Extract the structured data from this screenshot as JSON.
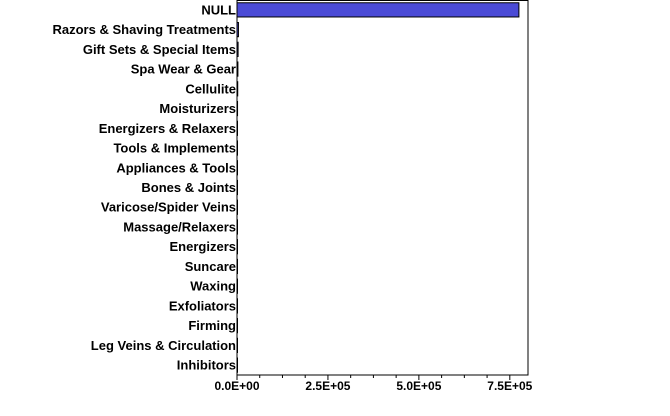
{
  "chart_data": {
    "type": "bar",
    "orientation": "horizontal",
    "title": "",
    "xlabel": "",
    "ylabel": "",
    "categories": [
      "NULL",
      "Razors & Shaving Treatments",
      "Gift Sets & Special Items",
      "Spa Wear & Gear",
      "Cellulite",
      "Moisturizers",
      "Energizers & Relaxers",
      "Tools & Implements",
      "Appliances & Tools",
      "Bones & Joints",
      "Varicose/Spider Veins",
      "Massage/Relaxers",
      "Energizers",
      "Suncare",
      "Waxing",
      "Exfoliators",
      "Firming",
      "Leg Veins & Circulation",
      "Inhibitors"
    ],
    "values": [
      775000,
      4000,
      3000,
      2500,
      2000,
      1500,
      800,
      600,
      500,
      400,
      350,
      300,
      250,
      200,
      150,
      120,
      100,
      80,
      60
    ],
    "xlim": [
      0,
      800000
    ],
    "xticks": [
      0,
      250000,
      500000,
      750000
    ],
    "xtick_labels": [
      "0.0E+00",
      "2.5E+05",
      "5.0E+05",
      "7.5E+05"
    ],
    "minor_ticks_per_major": 3,
    "grid": false,
    "legend": "none",
    "colors": {
      "bar_fill": "#4b4bd6",
      "bar_stroke": "#000000",
      "axis": "#000000"
    }
  }
}
